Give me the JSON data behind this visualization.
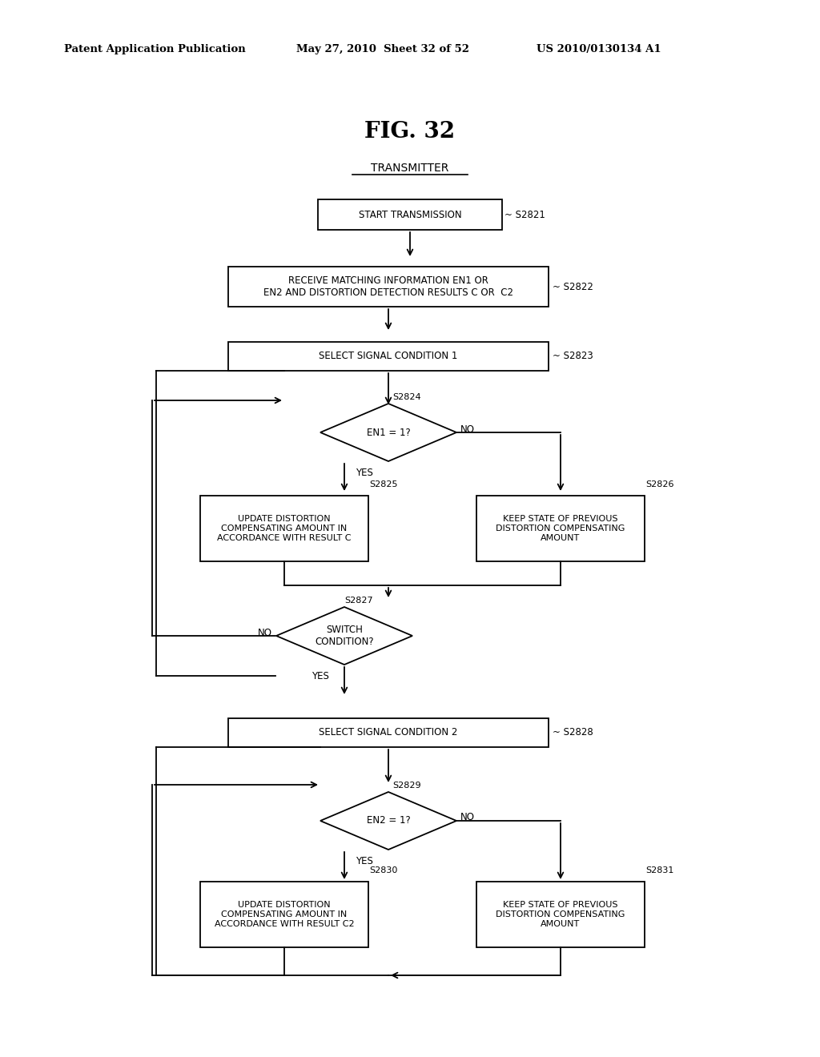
{
  "header_left": "Patent Application Publication",
  "header_mid": "May 27, 2010  Sheet 32 of 52",
  "header_right": "US 2010/0130134 A1",
  "title": "FIG. 32",
  "section_label": "TRANSMITTER",
  "bg_color": "#ffffff",
  "lw": 1.3,
  "nodes": {
    "S2821": {
      "label": "START TRANSMISSION",
      "step": "~ S2821"
    },
    "S2822": {
      "label": "RECEIVE MATCHING INFORMATION EN1 OR\nEN2 AND DISTORTION DETECTION RESULTS C OR  C2",
      "step": "~ S2822"
    },
    "S2823": {
      "label": "SELECT SIGNAL CONDITION 1",
      "step": "~ S2823"
    },
    "S2824": {
      "label": "EN1 = 1?",
      "step": "S2824"
    },
    "S2825": {
      "label": "UPDATE DISTORTION\nCOMPENSATING AMOUNT IN\nACCORDANCE WITH RESULT C",
      "step": "S2825"
    },
    "S2826": {
      "label": "KEEP STATE OF PREVIOUS\nDISTORTION COMPENSATING\nAMOUNT",
      "step": "S2826"
    },
    "S2827": {
      "label": "SWITCH\nCONDITION?",
      "step": "S2827"
    },
    "S2828": {
      "label": "SELECT SIGNAL CONDITION 2",
      "step": "~ S2828"
    },
    "S2829": {
      "label": "EN2 = 1?",
      "step": "S2829"
    },
    "S2830": {
      "label": "UPDATE DISTORTION\nCOMPENSATING AMOUNT IN\nACCORDANCE WITH RESULT C2",
      "step": "S2830"
    },
    "S2831": {
      "label": "KEEP STATE OF PREVIOUS\nDISTORTION COMPENSATING\nAMOUNT",
      "step": "S2831"
    }
  }
}
